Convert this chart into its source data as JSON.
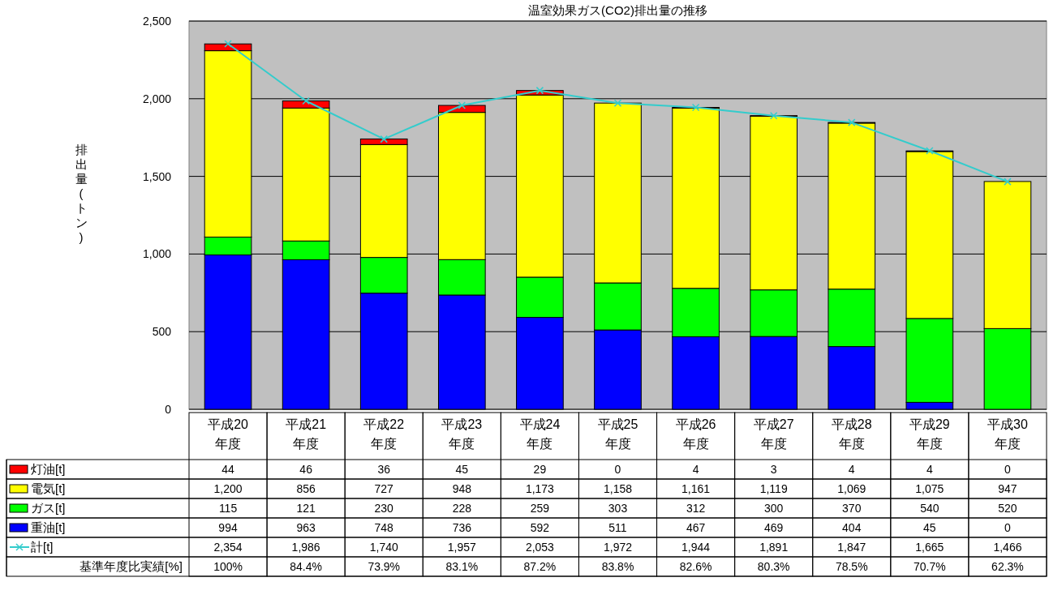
{
  "chart_data": {
    "type": "bar",
    "title": "温室効果ガス(CO2)排出量の推移",
    "ylabel": "排出量(トン)",
    "categories": [
      "平成20\n年度",
      "平成21\n年度",
      "平成22\n年度",
      "平成23\n年度",
      "平成24\n年度",
      "平成25\n年度",
      "平成26\n年度",
      "平成27\n年度",
      "平成28\n年度",
      "平成29\n年度",
      "平成30\n年度"
    ],
    "stacked": true,
    "grid": "y",
    "legend": "bottom",
    "ylim": [
      0,
      2500
    ],
    "yticks": [
      0,
      500,
      {
        "value": 1000,
        "label": "1,000"
      },
      {
        "value": 1500,
        "label": "1,500"
      },
      {
        "value": 2000,
        "label": "2,000"
      },
      {
        "value": 2500,
        "label": "2,500"
      }
    ],
    "series": [
      {
        "name": "重油[t]",
        "color": "#0000ff",
        "values": [
          994,
          963,
          748,
          736,
          592,
          511,
          467,
          469,
          404,
          45,
          0
        ],
        "value_labels": [
          "994",
          "963",
          "748",
          "736",
          "592",
          "511",
          "467",
          "469",
          "404",
          "45",
          "0"
        ]
      },
      {
        "name": "ガス[t]",
        "color": "#00ff00",
        "values": [
          115,
          121,
          230,
          228,
          259,
          303,
          312,
          300,
          370,
          540,
          520
        ],
        "value_labels": [
          "115",
          "121",
          "230",
          "228",
          "259",
          "303",
          "312",
          "300",
          "370",
          "540",
          "520"
        ]
      },
      {
        "name": "電気[t]",
        "color": "#ffff00",
        "values": [
          1200,
          856,
          727,
          948,
          1173,
          1158,
          1161,
          1119,
          1069,
          1075,
          947
        ],
        "value_labels": [
          "1,200",
          "856",
          "727",
          "948",
          "1,173",
          "1,158",
          "1,161",
          "1,119",
          "1,069",
          "1,075",
          "947"
        ]
      },
      {
        "name": "灯油[t]",
        "color": "#ff0000",
        "values": [
          44,
          46,
          36,
          45,
          29,
          0,
          4,
          3,
          4,
          4,
          0
        ],
        "value_labels": [
          "44",
          "46",
          "36",
          "45",
          "29",
          "0",
          "4",
          "3",
          "4",
          "4",
          "0"
        ]
      },
      {
        "name": "計[t]",
        "type": "line",
        "color": "#33cccc",
        "marker": "cross",
        "values": [
          2354,
          1986,
          1740,
          1957,
          2053,
          1972,
          1944,
          1891,
          1847,
          1665,
          1466
        ],
        "value_labels": [
          "2,354",
          "1,986",
          "1,740",
          "1,957",
          "2,053",
          "1,972",
          "1,944",
          "1,891",
          "1,847",
          "1,665",
          "1,466"
        ]
      }
    ],
    "annotations": [
      "基準年度比実績[%]",
      "100%",
      "84.4%",
      "73.9%",
      "83.1%",
      "87.2%",
      "83.8%",
      "82.6%",
      "80.3%",
      "78.5%",
      "70.7%",
      "62.3%"
    ]
  }
}
